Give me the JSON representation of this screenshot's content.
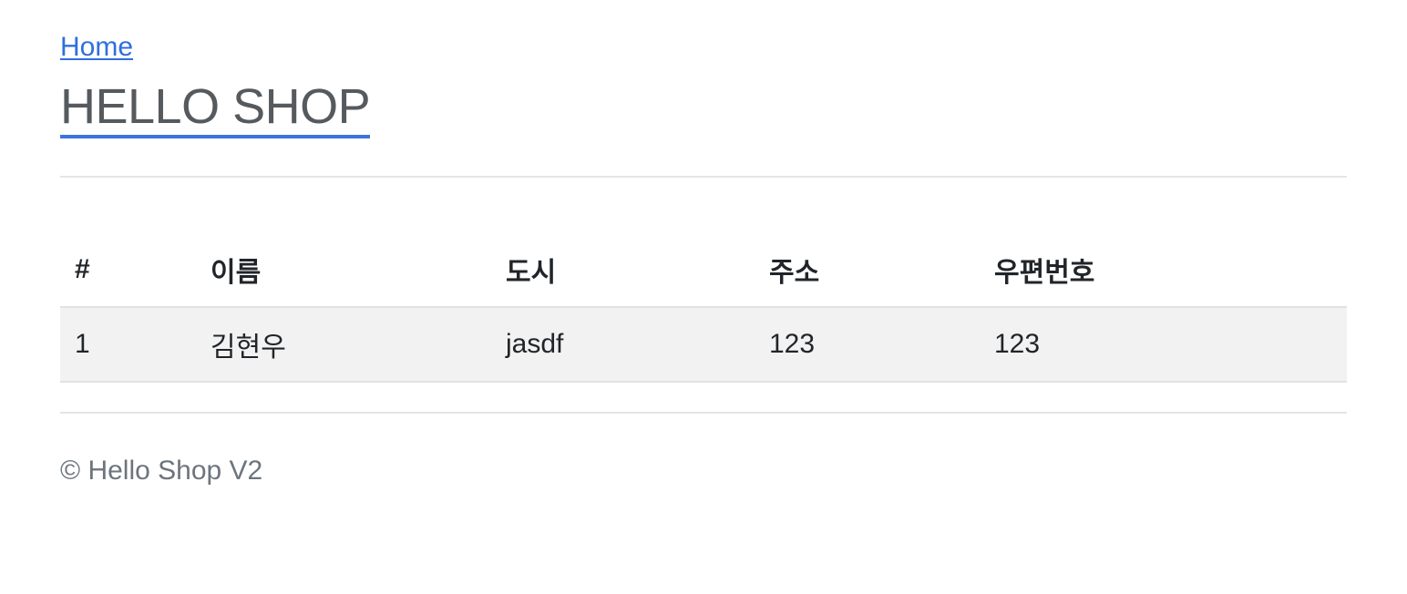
{
  "header": {
    "home_link": "Home",
    "brand_title": "HELLO SHOP"
  },
  "table": {
    "columns": [
      "#",
      "이름",
      "도시",
      "주소",
      "우편번호"
    ],
    "rows": [
      [
        "1",
        "김현우",
        "jasdf",
        "123",
        "123"
      ]
    ]
  },
  "footer": {
    "text": "© Hello Shop V2"
  },
  "colors": {
    "link": "#2f6fde",
    "brand_text": "#555a5f",
    "brand_underline": "#3a74e0",
    "row_background": "#f2f2f2",
    "footer_text": "#6c757d"
  }
}
